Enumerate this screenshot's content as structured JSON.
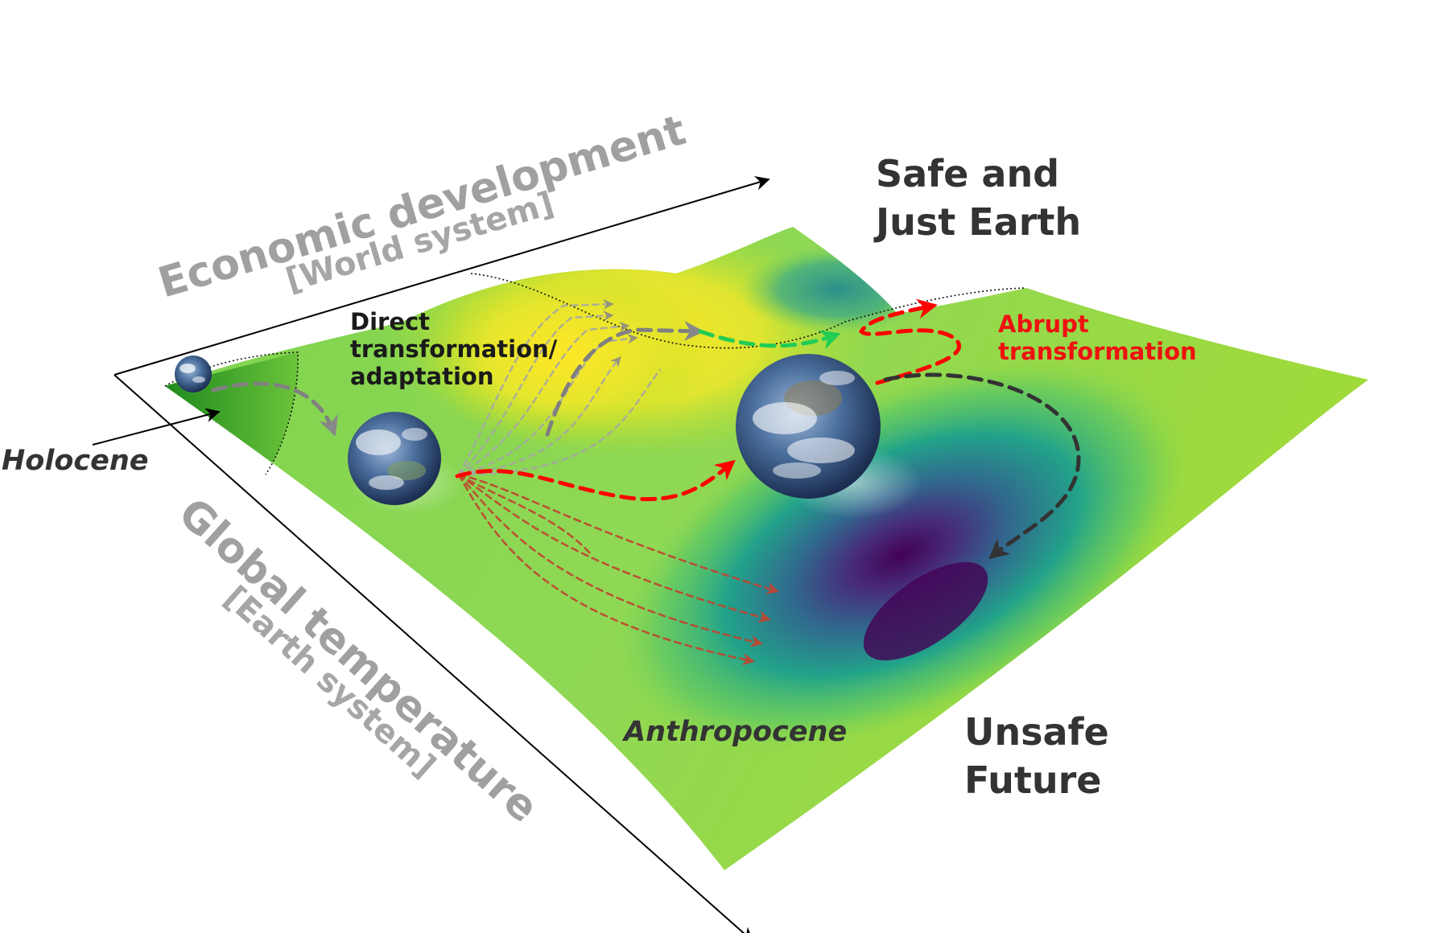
{
  "labels": {
    "safe_line1": "Safe and",
    "safe_line2": "Just Earth",
    "unsafe_line1": "Unsafe",
    "unsafe_line2": "Future",
    "econ_axis": "Economic development",
    "econ_sub": "[World system]",
    "temp_axis": "Global temperature",
    "temp_sub": "[Earth system]",
    "direct_line1": "Direct",
    "direct_line2": "transformation/",
    "direct_line3": "adaptation",
    "abrupt_line1": "Abrupt",
    "abrupt_line2": "transformation",
    "holocene": "Holocene",
    "anthropocene": "Anthropocene"
  },
  "colors": {
    "surface_yellow": "#fde725",
    "surface_green": "#8fd855",
    "surface_teal": "#22a38a",
    "surface_blue": "#31688e",
    "surface_purple": "#440154",
    "holocene_green": "#2ca02c",
    "red_path": "#ff0000",
    "green_path": "#22cc55",
    "grey_path": "#888888",
    "dark_path": "#333333"
  },
  "icons": [
    "earth-globe-small",
    "earth-globe-medium",
    "earth-globe-large"
  ]
}
